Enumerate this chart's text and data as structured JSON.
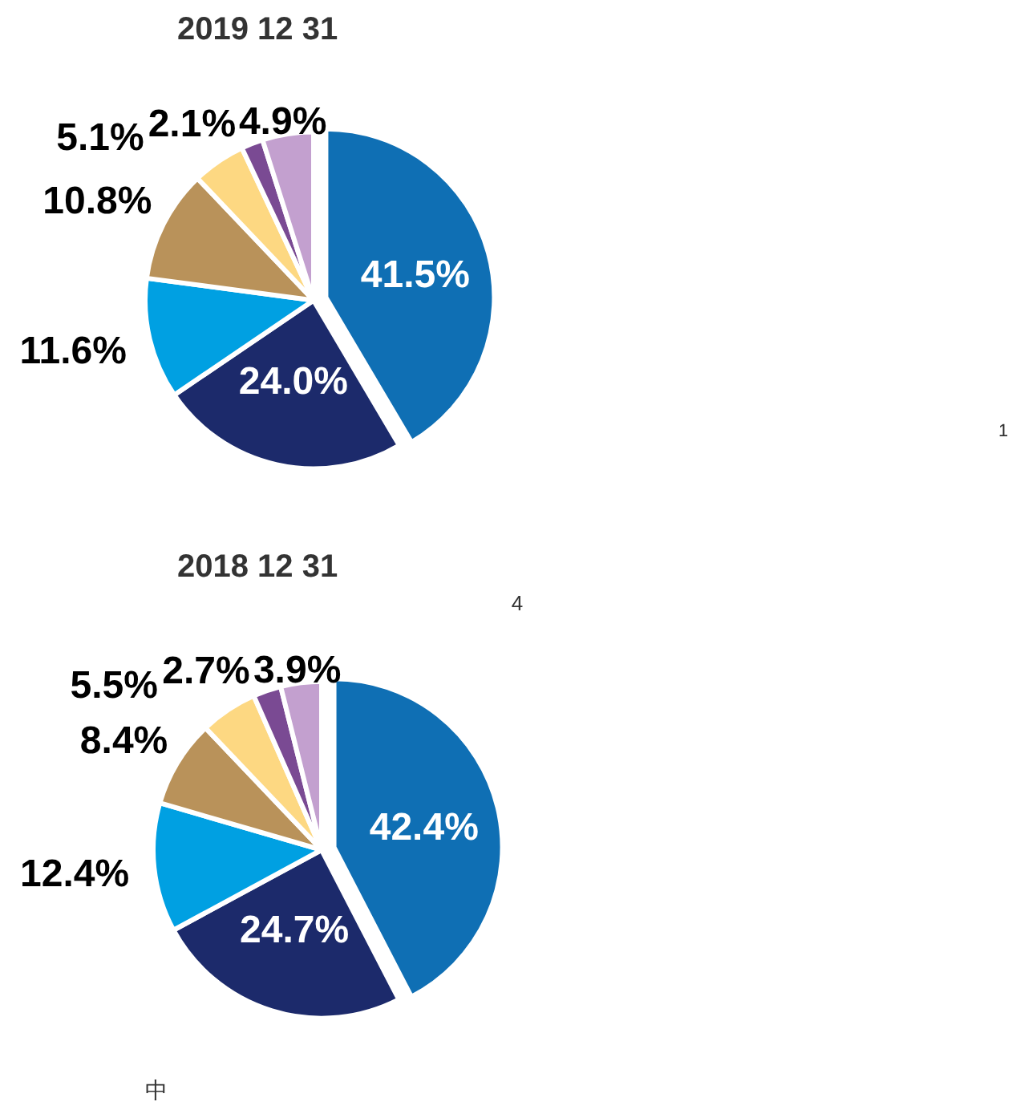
{
  "chart_data": [
    {
      "type": "pie",
      "title": "2019    12    31",
      "categories": [
        null,
        null,
        null,
        null,
        null,
        null,
        null
      ],
      "values": [
        41.5,
        24.0,
        11.6,
        10.8,
        5.1,
        2.1,
        4.9
      ],
      "value_labels": [
        "41.5%",
        "24.0%",
        "11.6%",
        "10.8%",
        "5.1%",
        "2.1%",
        "4.9%"
      ],
      "colors": [
        "#0f6fb4",
        "#1c2a6b",
        "#00a0e2",
        "#b9925a",
        "#fdd882",
        "#7a4a93",
        "#c3a0cf"
      ],
      "annotations": [
        "1"
      ]
    },
    {
      "type": "pie",
      "title": "2018    12    31",
      "categories": [
        null,
        null,
        null,
        null,
        null,
        null,
        null
      ],
      "values": [
        42.4,
        24.7,
        12.4,
        8.4,
        5.5,
        2.7,
        3.9
      ],
      "value_labels": [
        "42.4%",
        "24.7%",
        "12.4%",
        "8.4%",
        "5.5%",
        "2.7%",
        "3.9%"
      ],
      "colors": [
        "#0f6fb4",
        "#1c2a6b",
        "#00a0e2",
        "#b9925a",
        "#fdd882",
        "#7a4a93",
        "#c3a0cf"
      ],
      "annotations": [
        "4",
        "中"
      ]
    }
  ]
}
